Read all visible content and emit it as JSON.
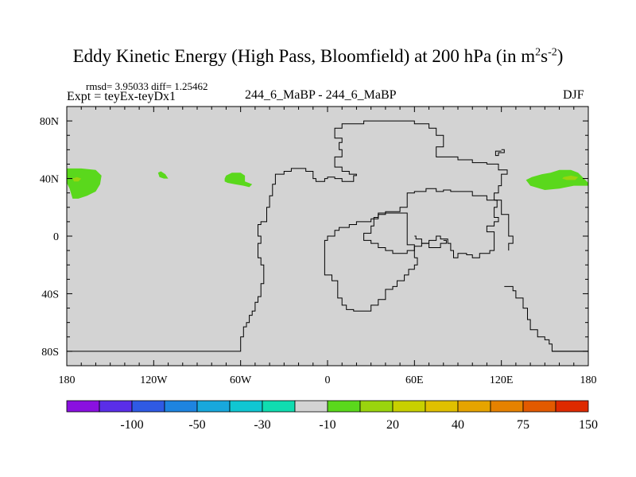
{
  "chart_data": {
    "type": "map",
    "title_main": "Eddy Kinetic Energy (High Pass, Bloomfield) at 200 hPa (in m",
    "title_sup1": "2",
    "title_s": "s",
    "title_sup2": "-2",
    "title_end": ")",
    "stats": "rmsd= 3.95033 diff= 1.25462",
    "experiment": "Expt = teyEx-teyDx1",
    "center_label": "244_6_MaBP - 244_6_MaBP",
    "season": "DJF",
    "lon_range": [
      -180,
      180
    ],
    "lat_range": [
      -90,
      90
    ],
    "x_ticks": [
      {
        "value": -180,
        "label": "180"
      },
      {
        "value": -120,
        "label": "120W"
      },
      {
        "value": -60,
        "label": "60W"
      },
      {
        "value": 0,
        "label": "0"
      },
      {
        "value": 60,
        "label": "60E"
      },
      {
        "value": 120,
        "label": "120E"
      },
      {
        "value": 180,
        "label": "180"
      }
    ],
    "y_ticks": [
      {
        "value": 80,
        "label": "80N"
      },
      {
        "value": 40,
        "label": "40N"
      },
      {
        "value": 0,
        "label": "0"
      },
      {
        "value": -40,
        "label": "40S"
      },
      {
        "value": -80,
        "label": "80S"
      }
    ],
    "background_color": "#d3d3d3",
    "colorbar": {
      "colors": [
        "#8a10e0",
        "#5a2ee8",
        "#2f5ae4",
        "#1e84e0",
        "#18a8dc",
        "#10c6d2",
        "#10dcb0",
        "#d3d3d3",
        "#5ad81c",
        "#9ad40e",
        "#c8d000",
        "#e0c000",
        "#e6a400",
        "#e68200",
        "#e25a00",
        "#de2a00"
      ],
      "labels": [
        {
          "boundary": 2,
          "text": "-100"
        },
        {
          "boundary": 4,
          "text": "-50"
        },
        {
          "boundary": 6,
          "text": "-30"
        },
        {
          "boundary": 8,
          "text": "-10"
        },
        {
          "boundary": 10,
          "text": "20"
        },
        {
          "boundary": 12,
          "text": "40"
        },
        {
          "boundary": 14,
          "text": "75"
        },
        {
          "boundary": 16,
          "text": "150"
        }
      ]
    },
    "anomaly_regions": [
      {
        "name": "north-pacific-east-patch",
        "color": "#5ad81c",
        "points": [
          [
            -180,
            47
          ],
          [
            -170,
            47
          ],
          [
            -160,
            46
          ],
          [
            -156,
            42
          ],
          [
            -157,
            36
          ],
          [
            -160,
            31
          ],
          [
            -166,
            28
          ],
          [
            -172,
            26
          ],
          [
            -176,
            26
          ],
          [
            -178,
            33
          ],
          [
            -180,
            37
          ]
        ]
      },
      {
        "name": "north-pacific-west-patch",
        "color": "#5ad81c",
        "points": [
          [
            180,
            37
          ],
          [
            173,
            44
          ],
          [
            168,
            46
          ],
          [
            160,
            46
          ],
          [
            154,
            44
          ],
          [
            148,
            43
          ],
          [
            141,
            41
          ],
          [
            137,
            39
          ],
          [
            140,
            35
          ],
          [
            150,
            32
          ],
          [
            160,
            33
          ],
          [
            170,
            35
          ],
          [
            180,
            35
          ]
        ]
      },
      {
        "name": "north-america-blob",
        "color": "#5ad81c",
        "points": [
          [
            -71,
            40
          ],
          [
            -70,
            42
          ],
          [
            -66,
            44
          ],
          [
            -60,
            44
          ],
          [
            -57,
            42
          ],
          [
            -57,
            38
          ],
          [
            -52,
            36
          ],
          [
            -54,
            34
          ],
          [
            -58,
            35
          ],
          [
            -64,
            36
          ],
          [
            -69,
            37
          ],
          [
            -71,
            38
          ]
        ]
      },
      {
        "name": "north-pacific-small-blob",
        "color": "#5ad81c",
        "points": [
          [
            -117,
            44
          ],
          [
            -115,
            45
          ],
          [
            -112,
            43
          ],
          [
            -110,
            40
          ],
          [
            -113,
            40
          ],
          [
            -116,
            41
          ]
        ]
      },
      {
        "name": "hawaii-yellow-spot",
        "color": "#9ad40e",
        "points": [
          [
            -176,
            40
          ],
          [
            -173,
            41
          ],
          [
            -170,
            40
          ],
          [
            -172,
            38
          ],
          [
            -175,
            38
          ]
        ]
      },
      {
        "name": "west-pacific-yellow-spot",
        "color": "#9ad40e",
        "points": [
          [
            163,
            41
          ],
          [
            168,
            42
          ],
          [
            173,
            41
          ],
          [
            171,
            39
          ],
          [
            165,
            39
          ],
          [
            162,
            40
          ]
        ]
      }
    ],
    "coastline": [
      [
        [
          -180,
          -80
        ],
        [
          -60,
          -80
        ],
        [
          -60,
          -70
        ],
        [
          -58,
          -70
        ],
        [
          -58,
          -63
        ],
        [
          -56,
          -63
        ],
        [
          -56,
          -60
        ],
        [
          -54,
          -60
        ],
        [
          -54,
          -55
        ],
        [
          -52,
          -55
        ],
        [
          -52,
          -52
        ],
        [
          -50,
          -52
        ],
        [
          -50,
          -46
        ],
        [
          -48,
          -46
        ],
        [
          -48,
          -42
        ],
        [
          -46,
          -42
        ],
        [
          -46,
          -33
        ],
        [
          -44,
          -33
        ],
        [
          -44,
          -20
        ],
        [
          -46,
          -20
        ],
        [
          -46,
          -15
        ],
        [
          -48,
          -15
        ],
        [
          -48,
          -5
        ],
        [
          -46,
          -5
        ],
        [
          -46,
          0
        ],
        [
          -48,
          0
        ],
        [
          -48,
          8
        ],
        [
          -46,
          8
        ],
        [
          -46,
          10
        ],
        [
          -42,
          10
        ],
        [
          -42,
          20
        ],
        [
          -40,
          20
        ],
        [
          -40,
          28
        ],
        [
          -38,
          28
        ],
        [
          -38,
          36
        ],
        [
          -36,
          36
        ],
        [
          -36,
          43
        ],
        [
          -30,
          43
        ],
        [
          -30,
          45
        ],
        [
          -25,
          45
        ],
        [
          -25,
          47
        ],
        [
          -15,
          47
        ],
        [
          -15,
          45
        ],
        [
          -10,
          45
        ],
        [
          -10,
          40
        ],
        [
          -8,
          40
        ],
        [
          -8,
          38
        ],
        [
          -2,
          38
        ],
        [
          -2,
          40
        ],
        [
          0,
          40
        ],
        [
          0,
          41
        ],
        [
          5,
          41
        ],
        [
          5,
          40
        ],
        [
          10,
          40
        ],
        [
          10,
          38
        ],
        [
          18,
          38
        ],
        [
          18,
          42
        ],
        [
          20,
          42
        ],
        [
          20,
          43
        ],
        [
          15,
          43
        ],
        [
          15,
          45
        ],
        [
          10,
          45
        ],
        [
          10,
          48
        ],
        [
          5,
          48
        ],
        [
          5,
          55
        ],
        [
          10,
          55
        ],
        [
          10,
          60
        ],
        [
          8,
          60
        ],
        [
          8,
          65
        ],
        [
          10,
          65
        ],
        [
          10,
          68
        ],
        [
          5,
          68
        ],
        [
          5,
          75
        ],
        [
          10,
          75
        ],
        [
          10,
          78
        ],
        [
          25,
          78
        ],
        [
          25,
          80
        ],
        [
          60,
          80
        ],
        [
          60,
          78
        ],
        [
          70,
          78
        ],
        [
          70,
          75
        ],
        [
          75,
          75
        ],
        [
          75,
          70
        ],
        [
          80,
          70
        ],
        [
          80,
          62
        ],
        [
          75,
          62
        ],
        [
          75,
          55
        ],
        [
          90,
          55
        ],
        [
          90,
          53
        ],
        [
          100,
          53
        ],
        [
          100,
          51
        ],
        [
          110,
          51
        ],
        [
          110,
          50
        ],
        [
          118,
          50
        ],
        [
          118,
          46
        ],
        [
          124,
          46
        ],
        [
          124,
          43
        ],
        [
          120,
          43
        ],
        [
          120,
          35
        ],
        [
          118,
          35
        ],
        [
          118,
          30
        ],
        [
          115,
          30
        ],
        [
          115,
          25
        ],
        [
          117,
          25
        ],
        [
          117,
          20
        ],
        [
          115,
          20
        ],
        [
          115,
          13
        ],
        [
          118,
          13
        ],
        [
          118,
          10
        ],
        [
          115,
          10
        ],
        [
          115,
          7
        ],
        [
          110,
          7
        ],
        [
          110,
          3
        ],
        [
          115,
          3
        ],
        [
          115,
          -10
        ],
        [
          112,
          -10
        ],
        [
          112,
          -12
        ],
        [
          105,
          -12
        ],
        [
          105,
          -15
        ],
        [
          100,
          -15
        ],
        [
          100,
          -13
        ],
        [
          96,
          -13
        ],
        [
          96,
          -12
        ],
        [
          90,
          -12
        ],
        [
          90,
          -15
        ],
        [
          87,
          -15
        ],
        [
          87,
          -10
        ],
        [
          85,
          -10
        ],
        [
          85,
          -5
        ],
        [
          83,
          -5
        ],
        [
          83,
          -2
        ],
        [
          78,
          -2
        ],
        [
          78,
          0
        ],
        [
          75,
          0
        ],
        [
          75,
          -3
        ],
        [
          70,
          -3
        ],
        [
          70,
          -5
        ],
        [
          65,
          -5
        ],
        [
          65,
          -7
        ],
        [
          60,
          -7
        ],
        [
          60,
          -10
        ],
        [
          55,
          -10
        ],
        [
          55,
          -12
        ],
        [
          45,
          -12
        ],
        [
          45,
          -10
        ],
        [
          40,
          -10
        ],
        [
          40,
          -8
        ],
        [
          35,
          -8
        ],
        [
          35,
          -5
        ],
        [
          30,
          -5
        ],
        [
          30,
          -3
        ],
        [
          25,
          -3
        ],
        [
          25,
          2
        ],
        [
          30,
          2
        ],
        [
          30,
          3
        ],
        [
          30,
          7
        ],
        [
          32,
          7
        ],
        [
          32,
          13
        ],
        [
          35,
          13
        ],
        [
          35,
          15
        ],
        [
          40,
          15
        ],
        [
          40,
          17
        ],
        [
          50,
          17
        ],
        [
          50,
          20
        ],
        [
          55,
          20
        ],
        [
          55,
          30
        ],
        [
          60,
          30
        ],
        [
          60,
          31
        ],
        [
          68,
          31
        ],
        [
          68,
          33
        ],
        [
          75,
          33
        ],
        [
          75,
          31
        ],
        [
          80,
          31
        ],
        [
          80,
          32
        ],
        [
          85,
          32
        ],
        [
          85,
          31
        ],
        [
          100,
          31
        ],
        [
          100,
          28
        ],
        [
          110,
          28
        ],
        [
          110,
          25
        ],
        [
          115,
          25
        ]
      ],
      [
        [
          60,
          -15
        ],
        [
          62,
          -15
        ],
        [
          62,
          -20
        ],
        [
          60,
          -20
        ],
        [
          60,
          -23
        ],
        [
          56,
          -23
        ],
        [
          56,
          -27
        ],
        [
          53,
          -27
        ],
        [
          53,
          -31
        ],
        [
          48,
          -31
        ],
        [
          48,
          -35
        ],
        [
          45,
          -35
        ],
        [
          45,
          -37
        ],
        [
          40,
          -37
        ],
        [
          40,
          -44
        ],
        [
          35,
          -44
        ],
        [
          35,
          -48
        ],
        [
          30,
          -48
        ],
        [
          30,
          -52
        ],
        [
          18,
          -52
        ],
        [
          18,
          -51
        ],
        [
          13,
          -51
        ],
        [
          13,
          -48
        ],
        [
          10,
          -48
        ],
        [
          10,
          -43
        ],
        [
          7,
          -43
        ],
        [
          7,
          -31
        ],
        [
          3,
          -31
        ],
        [
          3,
          -27
        ],
        [
          -2,
          -27
        ],
        [
          -2,
          -3
        ],
        [
          0,
          -3
        ],
        [
          0,
          0
        ],
        [
          5,
          0
        ],
        [
          5,
          4
        ],
        [
          8,
          4
        ],
        [
          8,
          6
        ],
        [
          15,
          6
        ],
        [
          15,
          8
        ],
        [
          20,
          8
        ],
        [
          20,
          10
        ],
        [
          30,
          10
        ],
        [
          30,
          12
        ],
        [
          35,
          12
        ],
        [
          35,
          16
        ],
        [
          55,
          16
        ],
        [
          55,
          -6
        ],
        [
          60,
          -6
        ],
        [
          60,
          -15
        ]
      ],
      [
        [
          60,
          0
        ],
        [
          61,
          0
        ],
        [
          61,
          -2
        ],
        [
          65,
          -2
        ],
        [
          65,
          -5
        ],
        [
          70,
          -5
        ],
        [
          70,
          -8
        ],
        [
          78,
          -8
        ],
        [
          78,
          -5
        ],
        [
          82,
          -5
        ],
        [
          82,
          -3
        ],
        [
          80,
          -3
        ]
      ],
      [
        [
          115,
          25
        ],
        [
          120,
          25
        ],
        [
          120,
          15
        ],
        [
          125,
          15
        ],
        [
          125,
          0
        ],
        [
          128,
          0
        ],
        [
          128,
          -5
        ],
        [
          125,
          -5
        ],
        [
          125,
          -10
        ]
      ],
      [
        [
          155,
          -80
        ],
        [
          180,
          -80
        ]
      ],
      [
        [
          180,
          -80
        ],
        [
          155,
          -80
        ],
        [
          155,
          -75
        ],
        [
          153,
          -75
        ],
        [
          153,
          -72
        ],
        [
          150,
          -72
        ],
        [
          150,
          -70
        ],
        [
          145,
          -70
        ],
        [
          145,
          -65
        ],
        [
          140,
          -65
        ],
        [
          140,
          -58
        ],
        [
          138,
          -58
        ],
        [
          138,
          -50
        ],
        [
          135,
          -50
        ],
        [
          135,
          -43
        ],
        [
          130,
          -43
        ],
        [
          130,
          -38
        ],
        [
          128,
          -38
        ],
        [
          128,
          -35
        ],
        [
          122,
          -35
        ]
      ],
      [
        [
          120,
          60
        ],
        [
          122,
          60
        ],
        [
          122,
          58
        ],
        [
          118,
          58
        ],
        [
          118,
          56
        ],
        [
          116,
          56
        ],
        [
          116,
          59
        ],
        [
          120,
          59
        ]
      ]
    ]
  }
}
